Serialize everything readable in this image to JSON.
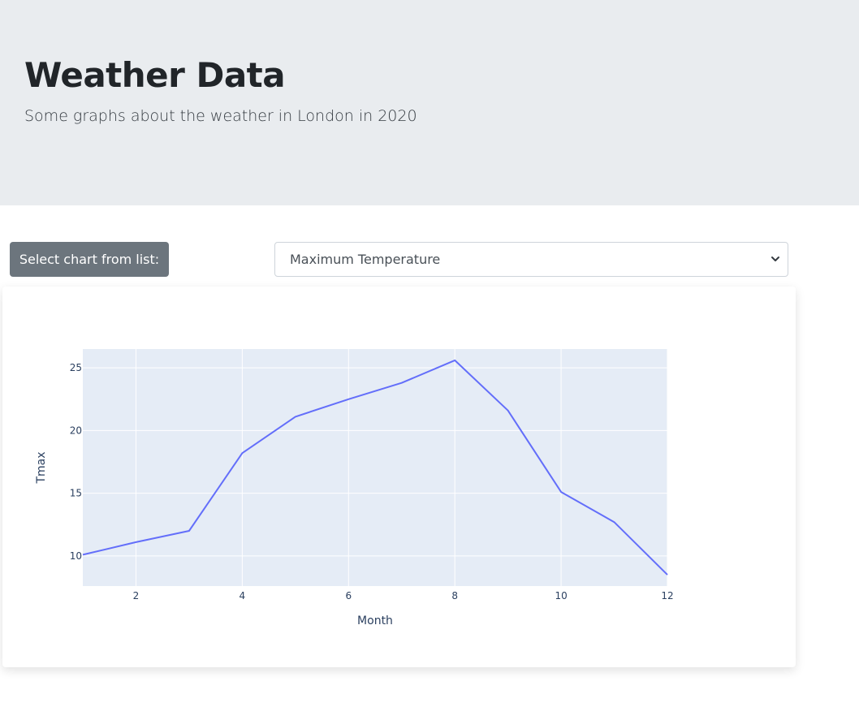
{
  "header": {
    "title": "Weather Data",
    "subtitle": "Some graphs about the weather in London in 2020"
  },
  "controls": {
    "select_label": "Select chart from list:",
    "selected_option": "Maximum Temperature"
  },
  "colors": {
    "header_bg": "#e9ecef",
    "label_bg": "#6c757d",
    "plot_bg": "#e5ecf6",
    "line": "#636efa",
    "axis_text": "#2a3f5f"
  },
  "chart_data": {
    "type": "line",
    "title": "",
    "xlabel": "Month",
    "ylabel": "Tmax",
    "x": [
      1,
      2,
      3,
      4,
      5,
      6,
      7,
      8,
      9,
      10,
      11,
      12
    ],
    "series": [
      {
        "values": [
          10.1,
          11.1,
          12.0,
          18.2,
          21.1,
          22.5,
          23.8,
          25.6,
          21.6,
          15.1,
          12.7,
          8.5
        ]
      }
    ],
    "xlim": [
      1,
      12
    ],
    "ylim": [
      7.6,
      26.5
    ],
    "xticks": [
      "2",
      "4",
      "6",
      "8",
      "10",
      "12"
    ],
    "yticks": [
      "10",
      "15",
      "20",
      "25"
    ],
    "grid": true,
    "legend": "none"
  }
}
